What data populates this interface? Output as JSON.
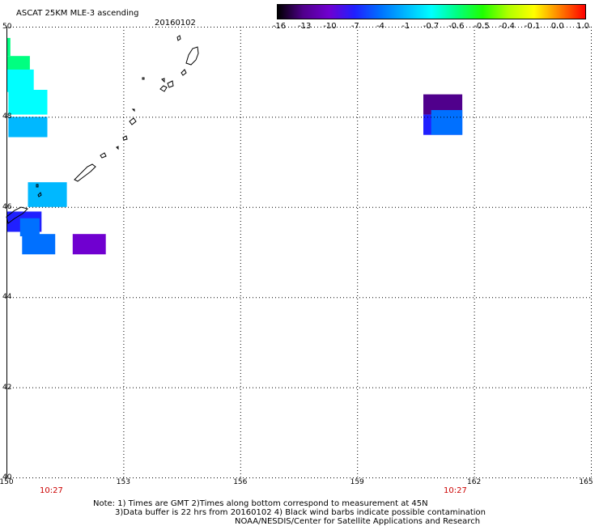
{
  "header": {
    "title": "ASCAT 25KM MLE-3 ascending",
    "date": "20160102"
  },
  "colorbar": {
    "labels": [
      "-16",
      "-13",
      "-10",
      "-7",
      "-4",
      "-1",
      "-0.7",
      "-0.6",
      "-0.5",
      "-0.4",
      "-0.1",
      "0.0",
      "1.0"
    ],
    "colors": [
      "#000000",
      "#50008c",
      "#7000d0",
      "#2020ff",
      "#0070ff",
      "#00b8ff",
      "#00ffff",
      "#00ff80",
      "#20ff00",
      "#b0ff00",
      "#ffff00",
      "#ff8000",
      "#ff0000"
    ]
  },
  "map": {
    "lat_labels": [
      "50",
      "48",
      "46",
      "44",
      "42",
      "40"
    ],
    "lon_labels": [
      "150",
      "153",
      "156",
      "159",
      "162",
      "165"
    ],
    "time_labels": [
      "10:27",
      "10:27"
    ],
    "cells": [
      {
        "lon": 150.0,
        "lat": 49.35,
        "dlon": 0.1,
        "dlat": 0.4,
        "value": -0.6
      },
      {
        "lon": 150.0,
        "lat": 48.95,
        "dlon": 0.6,
        "dlat": 0.4,
        "value": -0.6
      },
      {
        "lon": 150.0,
        "lat": 48.55,
        "dlon": 0.7,
        "dlat": 0.5,
        "value": -0.7
      },
      {
        "lon": 150.05,
        "lat": 48.05,
        "dlon": 1.0,
        "dlat": 0.55,
        "value": -0.7
      },
      {
        "lon": 150.05,
        "lat": 47.55,
        "dlon": 1.0,
        "dlat": 0.45,
        "value": -1
      },
      {
        "lon": 150.55,
        "lat": 46.0,
        "dlon": 1.0,
        "dlat": 0.55,
        "value": -1
      },
      {
        "lon": 150.0,
        "lat": 45.45,
        "dlon": 0.9,
        "dlat": 0.45,
        "value": -7
      },
      {
        "lon": 150.35,
        "lat": 45.35,
        "dlon": 0.5,
        "dlat": 0.4,
        "value": -4
      },
      {
        "lon": 150.4,
        "lat": 44.95,
        "dlon": 0.85,
        "dlat": 0.45,
        "value": -4
      },
      {
        "lon": 151.7,
        "lat": 44.95,
        "dlon": 0.85,
        "dlat": 0.45,
        "value": -10
      },
      {
        "lon": 160.7,
        "lat": 48.05,
        "dlon": 1.0,
        "dlat": 0.45,
        "value": -13
      },
      {
        "lon": 160.7,
        "lat": 47.6,
        "dlon": 1.0,
        "dlat": 0.45,
        "value": -7
      },
      {
        "lon": 160.9,
        "lat": 47.6,
        "dlon": 0.8,
        "dlat": 0.55,
        "value": -4
      }
    ]
  },
  "notes": {
    "line1": "Note: 1) Times are GMT 2)Times along bottom correspond to measurement at 45N",
    "line2": "3)Data buffer is 22 hrs from 20160102 4) Black wind barbs indicate possible contamination",
    "line3": "NOAA/NESDIS/Center for Satellite Applications and Research"
  }
}
